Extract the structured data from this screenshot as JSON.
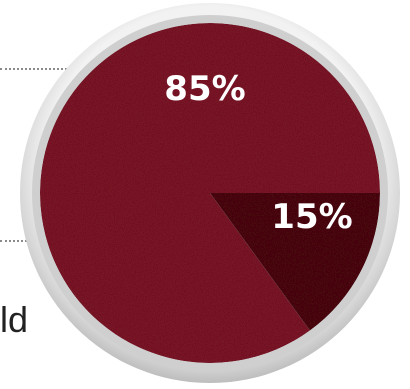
{
  "chart_data": {
    "type": "pie",
    "slices": [
      {
        "label": "85%",
        "value": 85,
        "color": "#7a1326"
      },
      {
        "label": "15%",
        "value": 15,
        "color": "#4a0710"
      }
    ]
  },
  "clipped_text": "ld",
  "colors": {
    "dish_rim": "#e4e4e4",
    "leader_line": "#8a8a8a",
    "label_text": "#ffffff"
  }
}
